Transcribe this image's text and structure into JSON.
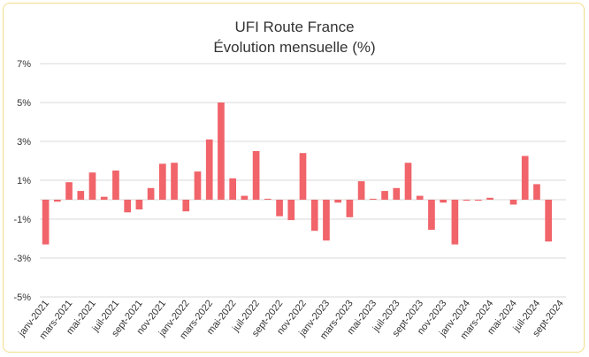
{
  "chart_data": {
    "type": "bar",
    "title": "UFI Route France",
    "subtitle": "Évolution mensuelle (%)",
    "xlabel": "",
    "ylabel": "",
    "ylim": [
      -5,
      7
    ],
    "yticks": [
      7,
      5,
      3,
      1,
      -1,
      -3,
      -5
    ],
    "ytick_labels": [
      "7%",
      "5%",
      "3%",
      "1%",
      "-1%",
      "-3%",
      "-5%"
    ],
    "grid": true,
    "legend": "none",
    "bar_color": "#f0646a",
    "categories": [
      "janv-2021",
      "févr-2021",
      "mars-2021",
      "avr-2021",
      "mai-2021",
      "juin-2021",
      "juil-2021",
      "août-2021",
      "sept-2021",
      "oct-2021",
      "nov-2021",
      "déc-2021",
      "janv-2022",
      "févr-2022",
      "mars-2022",
      "avr-2022",
      "mai-2022",
      "juin-2022",
      "juil-2022",
      "août-2022",
      "sept-2022",
      "oct-2022",
      "nov-2022",
      "déc-2022",
      "janv-2023",
      "févr-2023",
      "mars-2023",
      "avr-2023",
      "mai-2023",
      "juin-2023",
      "juil-2023",
      "août-2023",
      "sept-2023",
      "oct-2023",
      "nov-2023",
      "déc-2023",
      "janv-2024",
      "févr-2024",
      "mars-2024",
      "avr-2024",
      "mai-2024",
      "juin-2024",
      "juil-2024",
      "août-2024",
      "sept-2024"
    ],
    "tick_labels": [
      "janv-2021",
      "mars-2021",
      "mai-2021",
      "juil-2021",
      "sept-2021",
      "nov-2021",
      "janv-2022",
      "mars-2022",
      "mai-2022",
      "juil-2022",
      "sept-2022",
      "nov-2022",
      "janv-2023",
      "mars-2023",
      "mai-2023",
      "juil-2023",
      "sept-2023",
      "nov-2023",
      "janv-2024",
      "mars-2024",
      "mai-2024",
      "juil-2024",
      "sept-2024"
    ],
    "values": [
      -2.3,
      -0.1,
      0.9,
      0.45,
      1.4,
      0.15,
      1.5,
      -0.65,
      -0.5,
      0.6,
      1.85,
      1.9,
      -0.6,
      1.45,
      3.1,
      5.0,
      1.1,
      0.2,
      2.5,
      0.05,
      -0.85,
      -1.05,
      2.4,
      -1.6,
      -2.1,
      -0.15,
      -0.9,
      0.95,
      0.05,
      0.45,
      0.6,
      1.9,
      0.2,
      -1.55,
      -0.15,
      -2.3,
      -0.05,
      -0.05,
      0.1,
      0.0,
      -0.25,
      2.25,
      0.8,
      -2.15,
      0.0
    ]
  }
}
